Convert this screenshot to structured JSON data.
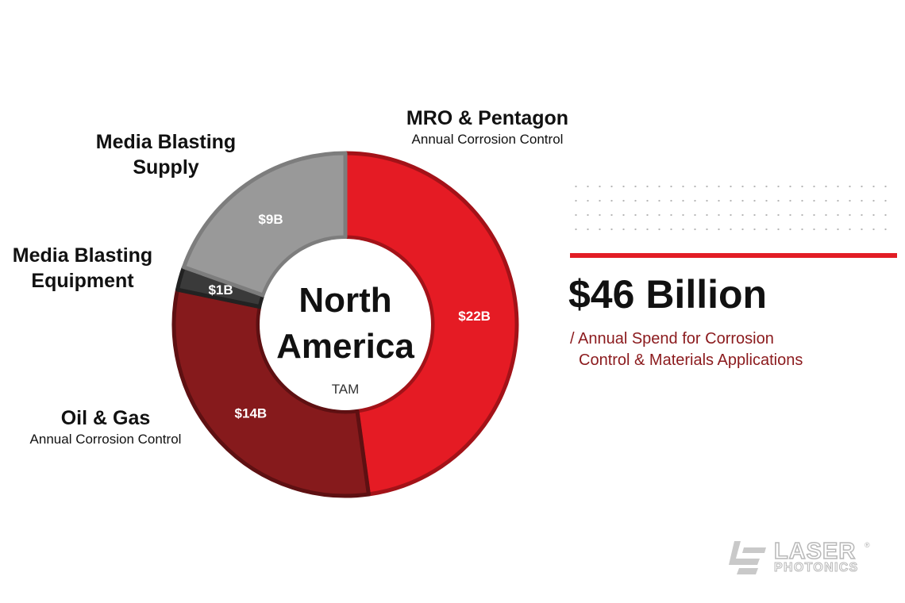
{
  "chart_data": {
    "type": "pie",
    "center": {
      "title_line1": "North",
      "title_line2": "America",
      "subtitle": "TAM"
    },
    "slices": [
      {
        "name": "MRO & Pentagon",
        "subtitle": "Annual Corrosion Control",
        "value": 22,
        "label": "$22B",
        "color": "#e51b24",
        "stroke": "#a31218"
      },
      {
        "name": "Oil & Gas",
        "subtitle": "Annual Corrosion Control",
        "value": 14,
        "label": "$14B",
        "color": "#861a1c",
        "stroke": "#5e1012"
      },
      {
        "name": "Media Blasting Equipment",
        "name_lines": [
          "Media Blasting",
          "Equipment"
        ],
        "value": 1,
        "label": "$1B",
        "color": "#3a3a3a",
        "stroke": "#222222"
      },
      {
        "name": "Media Blasting Supply",
        "name_lines": [
          "Media Blasting",
          "Supply"
        ],
        "value": 9,
        "label": "$9B",
        "color": "#999999",
        "stroke": "#7d7d7d"
      }
    ]
  },
  "summary": {
    "amount": "$46 Billion",
    "desc_line1": "/ Annual Spend for Corrosion",
    "desc_line2": "Control & Materials Applications",
    "accent_color": "#e21d25",
    "desc_color": "#8b1a1d"
  },
  "logo": {
    "line1": "LASER",
    "line2": "PHOTONICS",
    "reg": "®"
  }
}
